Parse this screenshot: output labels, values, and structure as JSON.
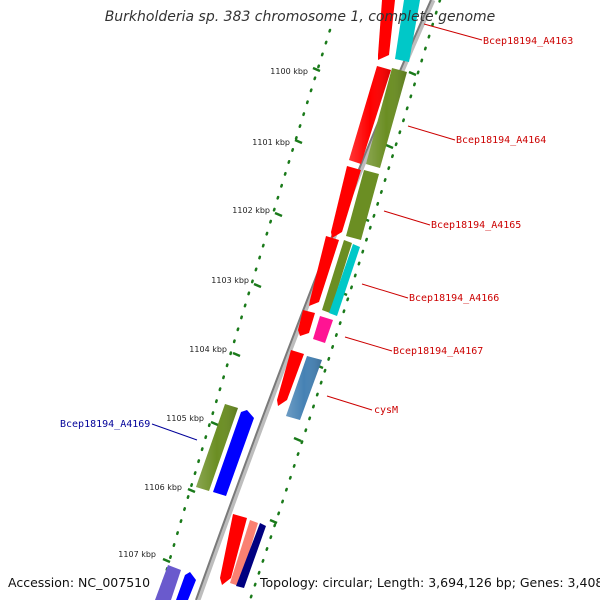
{
  "title": "Burkholderia sp. 383 chromosome 1, complete genome",
  "footer": {
    "accession": "Accession: NC_007510",
    "topology": "Topology: circular; Length: 3,694,126 bp; Genes: 3,408"
  },
  "ticks": [
    "1100 kbp",
    "1101 kbp",
    "1102 kbp",
    "1103 kbp",
    "1104 kbp",
    "1105 kbp",
    "1106 kbp",
    "1107 kbp"
  ],
  "gene_labels": [
    {
      "text": "Bcep18194_A4163",
      "color": "#cc0000"
    },
    {
      "text": "Bcep18194_A4164",
      "color": "#cc0000"
    },
    {
      "text": "Bcep18194_A4165",
      "color": "#cc0000"
    },
    {
      "text": "Bcep18194_A4166",
      "color": "#cc0000"
    },
    {
      "text": "Bcep18194_A4167",
      "color": "#cc0000"
    },
    {
      "text": "cysM",
      "color": "#cc0000"
    },
    {
      "text": "Bcep18194_A4169",
      "color": "#000099"
    }
  ],
  "colors": {
    "backbone": "#888888",
    "tick": "#1a7a1a",
    "cds_forward": "#ff0000",
    "olive": "#6b8e23",
    "cyan": "#00c8c8",
    "magenta": "#ff1493",
    "steelblue": "#4682b4",
    "blue": "#0000ff",
    "salmon": "#fa8072",
    "navy": "#000080",
    "slateblue": "#6a5acd"
  }
}
